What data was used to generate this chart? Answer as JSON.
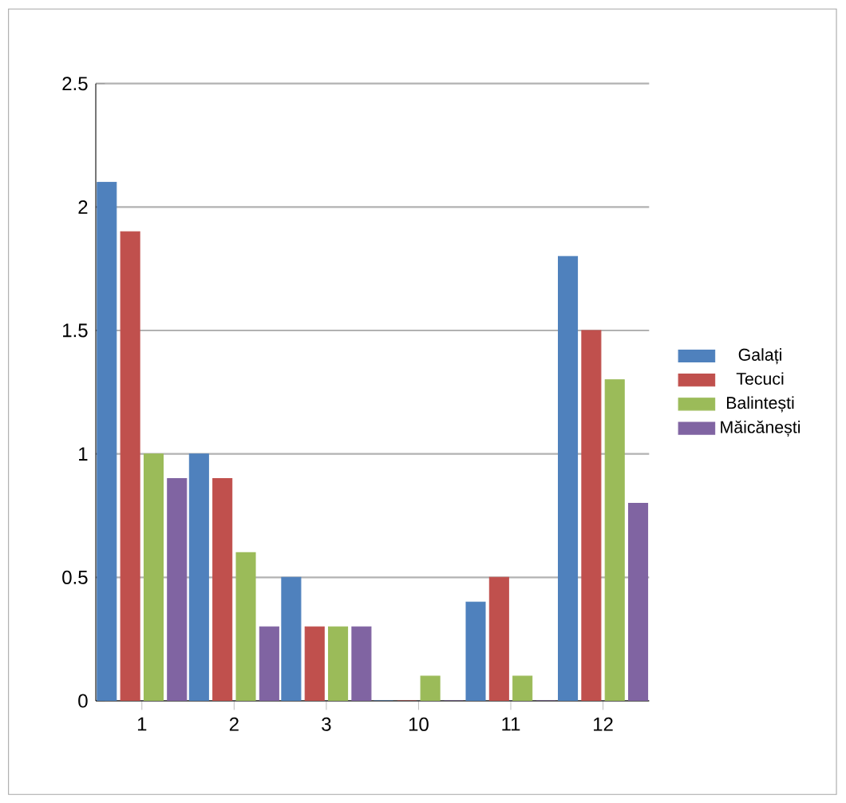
{
  "chart_data": {
    "type": "bar",
    "categories": [
      "1",
      "2",
      "3",
      "10",
      "11",
      "12"
    ],
    "series": [
      {
        "name": "Galați",
        "color": "#4f81bd",
        "values": [
          2.1,
          1.0,
          0.5,
          0,
          0.4,
          1.8
        ]
      },
      {
        "name": "Tecuci",
        "color": "#c0504d",
        "values": [
          1.9,
          0.9,
          0.3,
          0,
          0.5,
          1.5
        ]
      },
      {
        "name": "Balintești",
        "color": "#9bbb59",
        "values": [
          1.0,
          0.6,
          0.3,
          0.1,
          0.1,
          1.3
        ]
      },
      {
        "name": "Măicănești",
        "color": "#8064a2",
        "values": [
          0.9,
          0.3,
          0.3,
          0,
          0,
          0.8
        ]
      }
    ],
    "ylim": [
      0,
      2.5
    ],
    "yticks": [
      0,
      0.5,
      1,
      1.5,
      2,
      2.5
    ],
    "grid": "y",
    "legend": "right"
  }
}
